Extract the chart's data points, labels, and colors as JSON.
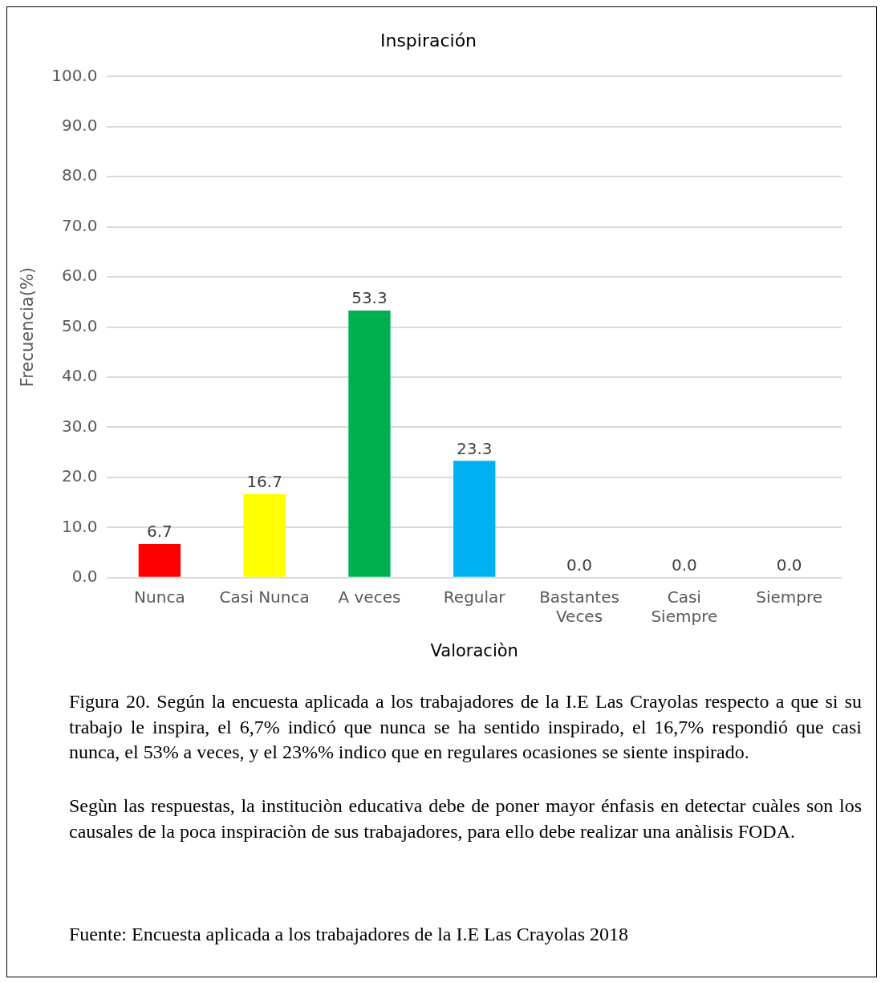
{
  "chart_data": {
    "type": "bar",
    "title": "Inspiración",
    "xlabel": "Valoraciòn",
    "ylabel": "Frecuencia(%)",
    "categories": [
      "Nunca",
      "Casi Nunca",
      "A veces",
      "Regular",
      "Bastantes Veces",
      "Casi Siempre",
      "Siempre"
    ],
    "values": [
      6.7,
      16.7,
      53.3,
      23.3,
      0,
      0,
      0
    ],
    "colors": [
      "#ff0000",
      "#ffff00",
      "#00b050",
      "#00b0f0",
      "#548235",
      "#44739f",
      "#c09000"
    ],
    "value_labels": [
      "6.7",
      "16.7",
      "53.3",
      "23.3",
      "0.0",
      "0.0",
      "0.0"
    ],
    "ylim": [
      0,
      100
    ],
    "yticks": [
      {
        "value": 0,
        "label": "0.0"
      },
      {
        "value": 10,
        "label": "10.0"
      },
      {
        "value": 20,
        "label": "20.0"
      },
      {
        "value": 30,
        "label": "30.0"
      },
      {
        "value": 40,
        "label": "40.0"
      },
      {
        "value": 50,
        "label": "50.0"
      },
      {
        "value": 60,
        "label": "60.0"
      },
      {
        "value": 70,
        "label": "70.0"
      },
      {
        "value": 80,
        "label": "80.0"
      },
      {
        "value": 90,
        "label": "90.0"
      },
      {
        "value": 100,
        "label": "100.0"
      }
    ],
    "grid": "y",
    "annotations": [
      "Figura 20. Según la encuesta aplicada a los trabajadores de la I.E Las Crayolas respecto a que si su trabajo le inspira, el 6,7% indicó que nunca  se ha sentido inspirado, el 16,7% respondió que casi nunca, el 53% a veces, y el 23%% indico que en regulares ocasiones se siente inspirado.",
      "Segùn  las respuestas, la instituciòn educativa debe de poner mayor énfasis en detectar cuàles son los causales de la poca inspiraciòn de sus trabajadores, para ello debe realizar una anàlisis FODA.",
      "Fuente: Encuesta aplicada a  los trabajadores de la I.E Las Crayolas 2018"
    ]
  }
}
